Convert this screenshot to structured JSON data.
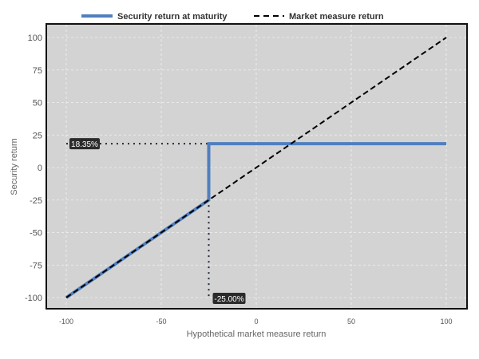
{
  "chart_data": {
    "type": "line",
    "title": "",
    "xlabel": "Hypothetical market measure return",
    "ylabel": "Security return",
    "xlim": [
      -100,
      100
    ],
    "ylim": [
      -100,
      100
    ],
    "xticks": [
      -100,
      -50,
      0,
      50,
      100
    ],
    "yticks": [
      -100,
      -75,
      -50,
      -25,
      0,
      25,
      50,
      75,
      100
    ],
    "grid": true,
    "legend_position": "top",
    "series": [
      {
        "name": "Security return at maturity",
        "color": "#4f7fbf",
        "style": "solid",
        "x": [
          -100,
          -25,
          -25,
          100
        ],
        "y": [
          -100,
          -25,
          18.35,
          18.35
        ]
      },
      {
        "name": "Market measure return",
        "color": "#000000",
        "style": "dashed",
        "x": [
          -100,
          100
        ],
        "y": [
          -100,
          100
        ]
      }
    ],
    "annotations": [
      {
        "text": "18.35%",
        "x": -100,
        "y": 18.35,
        "guide": "horizontal"
      },
      {
        "text": "-25.00%",
        "x": -25,
        "y": -100,
        "guide": "vertical"
      }
    ]
  }
}
